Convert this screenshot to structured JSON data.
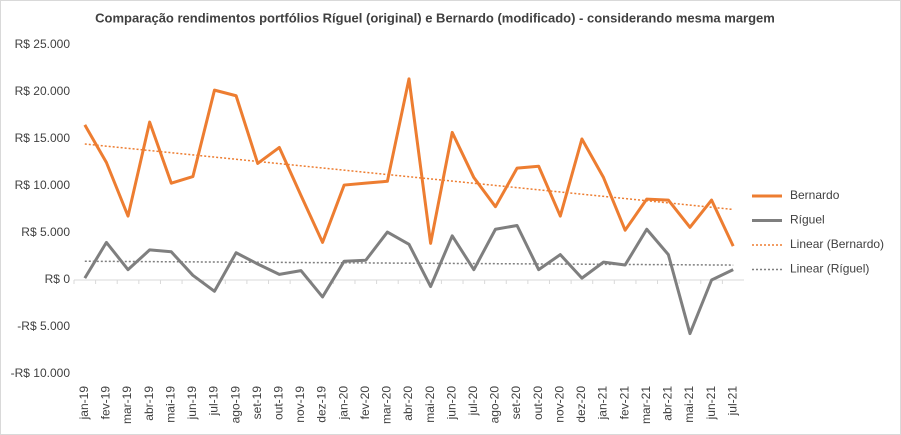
{
  "chart_data": {
    "type": "line",
    "title": "Comparação  rendimentos portfólios Ríguel (original) e Bernardo (modificado) - considerando mesma margem",
    "categories": [
      "jan-19",
      "fev-19",
      "mar-19",
      "abr-19",
      "mai-19",
      "jun-19",
      "jul-19",
      "ago-19",
      "set-19",
      "out-19",
      "nov-19",
      "dez-19",
      "jan-20",
      "fev-20",
      "mar-20",
      "abr-20",
      "mai-20",
      "jun-20",
      "jul-20",
      "ago-20",
      "set-20",
      "out-20",
      "nov-20",
      "dez-20",
      "jan-21",
      "fev-21",
      "mar-21",
      "abr-21",
      "mai-21",
      "jun-21",
      "jul-21"
    ],
    "series": [
      {
        "name": "Bernardo",
        "color": "#ed7d31",
        "values": [
          16500,
          12500,
          6800,
          16800,
          10300,
          11000,
          20200,
          19600,
          12400,
          14100,
          9000,
          4000,
          10100,
          10300,
          10500,
          21400,
          3900,
          15700,
          10900,
          7800,
          11900,
          12100,
          6800,
          15000,
          10900,
          5300,
          8600,
          8500,
          5600,
          8500,
          3600
        ],
        "trendline": {
          "type": "linear",
          "name": "Linear (Bernardo)"
        }
      },
      {
        "name": "Ríguel",
        "color": "#7f7f7f",
        "values": [
          200,
          4000,
          1100,
          3200,
          3000,
          500,
          -1200,
          2900,
          1700,
          600,
          1000,
          -1800,
          2000,
          2100,
          5100,
          3800,
          -700,
          4700,
          1100,
          5400,
          5800,
          1100,
          2700,
          200,
          1900,
          1600,
          5400,
          2700,
          -5700,
          0,
          1100
        ],
        "trendline": {
          "type": "linear",
          "name": "Linear (Ríguel)"
        }
      }
    ],
    "ylim": [
      -10000,
      25000
    ],
    "yticks": [
      {
        "value": -10000,
        "label": "-R$ 10.000"
      },
      {
        "value": -5000,
        "label": "-R$ 5.000"
      },
      {
        "value": 0,
        "label": "R$ 0"
      },
      {
        "value": 5000,
        "label": "R$ 5.000"
      },
      {
        "value": 10000,
        "label": "R$ 10.000"
      },
      {
        "value": 15000,
        "label": "R$ 15.000"
      },
      {
        "value": 20000,
        "label": "R$ 20.000"
      },
      {
        "value": 25000,
        "label": "R$ 25.000"
      }
    ],
    "grid": false,
    "legend": "right"
  }
}
